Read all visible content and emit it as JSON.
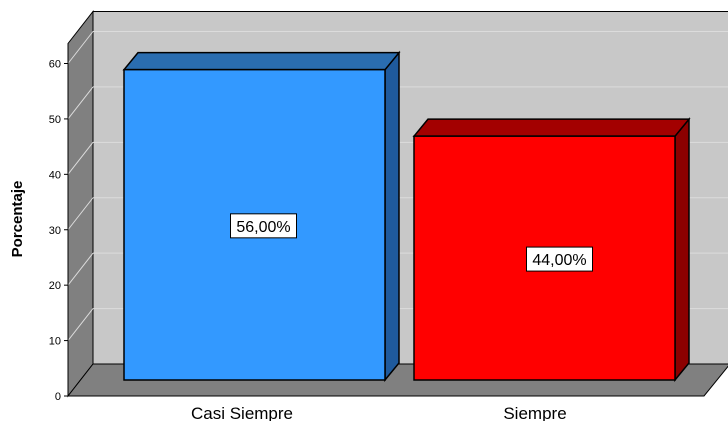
{
  "chart_data": {
    "type": "bar",
    "categories": [
      "Casi Siempre",
      "Siempre"
    ],
    "values": [
      56,
      44
    ],
    "data_labels": [
      "56,00%",
      "44,00%"
    ],
    "ylabel": "Porcentaje",
    "ylim": [
      0,
      60
    ],
    "yticks": [
      "0",
      "10",
      "20",
      "30",
      "40",
      "50",
      "60"
    ],
    "grid": true,
    "three_d": true,
    "colors": {
      "bars": [
        "#3399ff",
        "#ff0000"
      ],
      "bar_tops": [
        "#2a6db0",
        "#a30000"
      ],
      "bar_sides": [
        "#1f5a9c",
        "#8c0000"
      ],
      "back_wall": "#c8c8c8",
      "floor": "#808080",
      "side_wall": "#808080",
      "gridline": "#dcdcdc"
    }
  }
}
